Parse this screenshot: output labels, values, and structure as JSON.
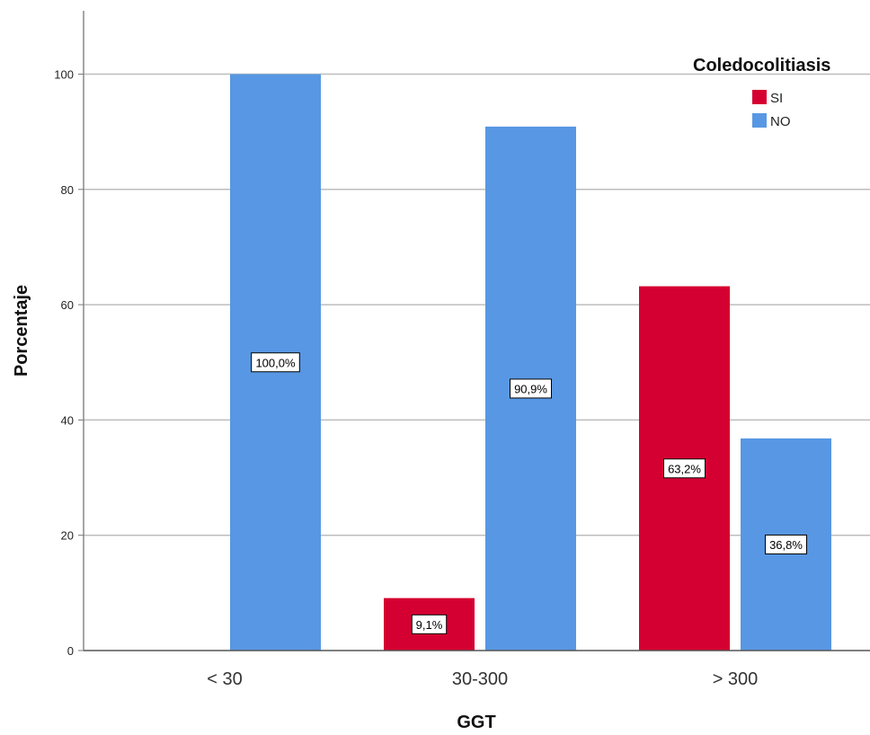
{
  "chart_data": {
    "type": "bar",
    "categories": [
      "< 30",
      "30-300",
      "> 300"
    ],
    "series": [
      {
        "name": "SI",
        "values": [
          0,
          9.1,
          63.2
        ],
        "labels": [
          "",
          "9,1%",
          "63,2%"
        ],
        "color": "#d50032"
      },
      {
        "name": "NO",
        "values": [
          100,
          90.9,
          36.8
        ],
        "labels": [
          "100,0%",
          "90,9%",
          "36,8%"
        ],
        "color": "#5897e3"
      }
    ],
    "title": "",
    "xlabel": "GGT",
    "ylabel": "Porcentaje",
    "ylim": [
      0,
      110
    ],
    "yticks": [
      0,
      20,
      40,
      60,
      80,
      100
    ],
    "grid": true,
    "legend": {
      "title": "Coledocolitiasis",
      "position": "top-right"
    }
  }
}
